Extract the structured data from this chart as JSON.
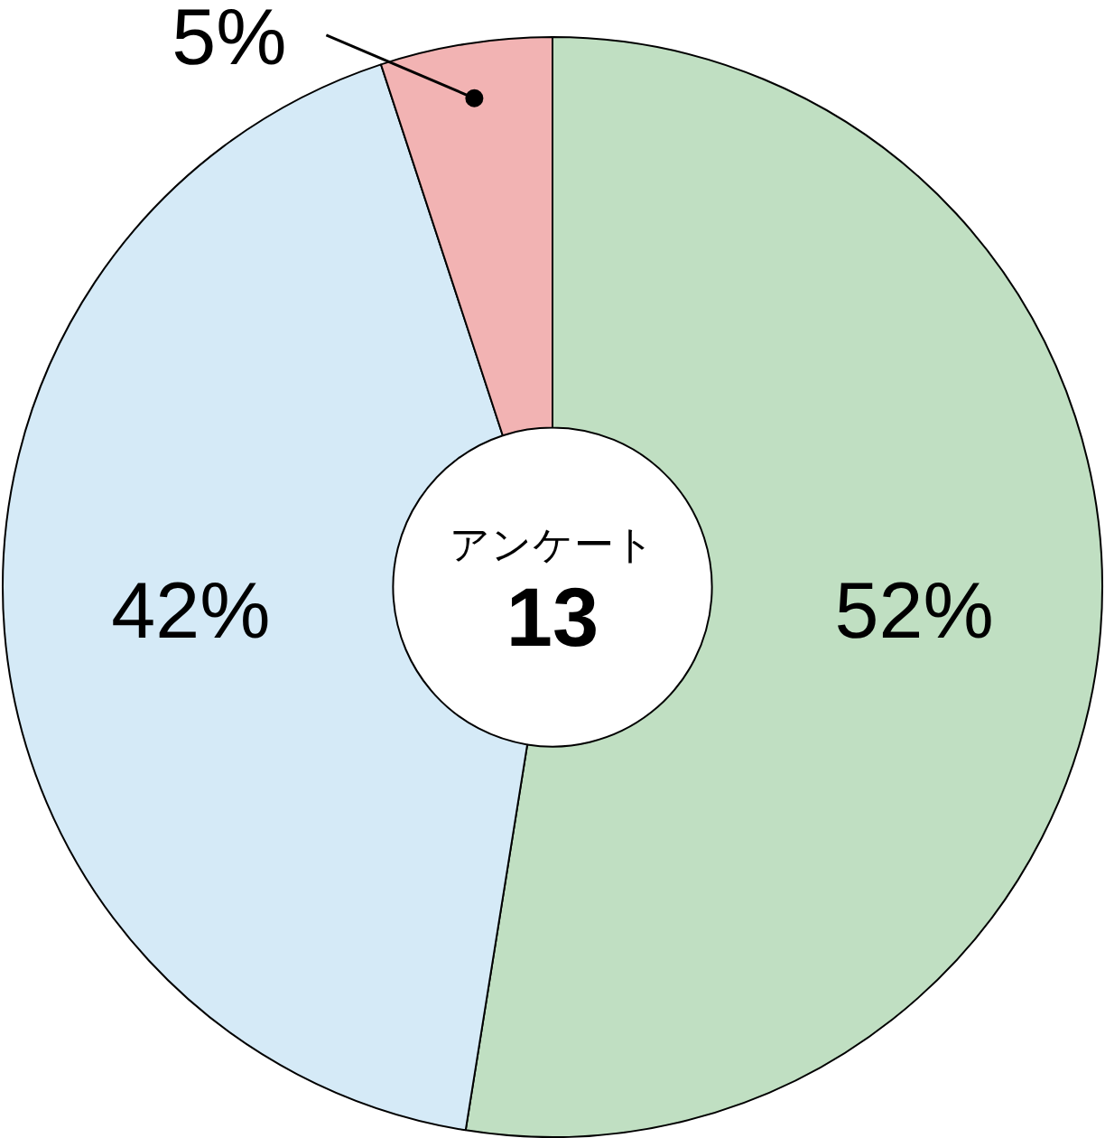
{
  "chart_data": {
    "type": "donut",
    "title": "アンケート",
    "subtitle": "13",
    "categories": [
      null,
      null,
      null
    ],
    "values": [
      52,
      42,
      5
    ],
    "colors": [
      "#c0dfc2",
      "#d5eaf7",
      "#f2b3b3"
    ],
    "value_labels": [
      "52%",
      "42%",
      "5%"
    ],
    "legend": false
  }
}
